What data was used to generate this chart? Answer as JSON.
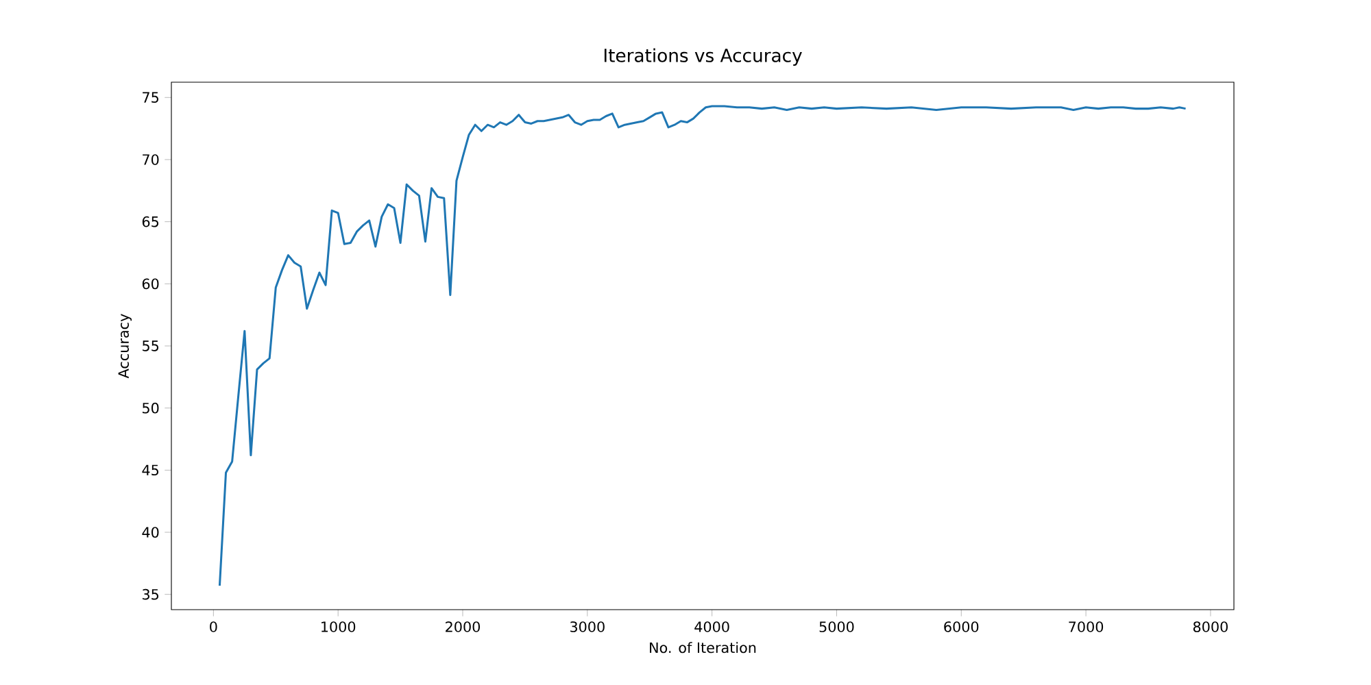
{
  "chart_data": {
    "type": "line",
    "title": "Iterations vs Accuracy",
    "xlabel": "No. of Iteration",
    "ylabel": "Accuracy",
    "x": [
      50,
      100,
      150,
      200,
      250,
      300,
      350,
      400,
      450,
      500,
      550,
      600,
      650,
      700,
      750,
      800,
      850,
      900,
      950,
      1000,
      1050,
      1100,
      1150,
      1200,
      1250,
      1300,
      1350,
      1400,
      1450,
      1500,
      1550,
      1600,
      1650,
      1700,
      1750,
      1800,
      1850,
      1900,
      1950,
      2000,
      2050,
      2100,
      2150,
      2200,
      2250,
      2300,
      2350,
      2400,
      2450,
      2500,
      2550,
      2600,
      2650,
      2700,
      2750,
      2800,
      2850,
      2900,
      2950,
      3000,
      3050,
      3100,
      3150,
      3200,
      3250,
      3300,
      3350,
      3400,
      3450,
      3500,
      3550,
      3600,
      3650,
      3700,
      3750,
      3800,
      3850,
      3900,
      3950,
      4000,
      4100,
      4200,
      4300,
      4400,
      4500,
      4600,
      4700,
      4800,
      4900,
      5000,
      5200,
      5400,
      5600,
      5800,
      6000,
      6200,
      6400,
      6600,
      6800,
      6900,
      7000,
      7100,
      7200,
      7300,
      7400,
      7500,
      7600,
      7700,
      7750,
      7800
    ],
    "series": [
      {
        "color": "#1f77b4",
        "values": [
          35.7,
          44.8,
          45.7,
          51.0,
          56.2,
          46.2,
          53.1,
          53.6,
          54.0,
          59.7,
          61.1,
          62.3,
          61.7,
          61.4,
          58.0,
          59.5,
          60.9,
          59.9,
          65.9,
          65.7,
          63.2,
          63.3,
          64.2,
          64.7,
          65.1,
          63.0,
          65.4,
          66.4,
          66.1,
          63.3,
          68.0,
          67.5,
          67.1,
          63.4,
          67.7,
          67.0,
          66.9,
          59.1,
          68.3,
          70.2,
          72.0,
          72.8,
          72.3,
          72.8,
          72.6,
          73.0,
          72.8,
          73.1,
          73.6,
          73.0,
          72.9,
          73.1,
          73.1,
          73.2,
          73.3,
          73.4,
          73.6,
          73.0,
          72.8,
          73.1,
          73.2,
          73.2,
          73.5,
          73.7,
          72.6,
          72.8,
          72.9,
          73.0,
          73.1,
          73.4,
          73.7,
          73.8,
          72.6,
          72.8,
          73.1,
          73.0,
          73.3,
          73.8,
          74.2,
          74.3,
          74.3,
          74.2,
          74.2,
          74.1,
          74.2,
          74.0,
          74.2,
          74.1,
          74.2,
          74.1,
          74.2,
          74.1,
          74.2,
          74.0,
          74.2,
          74.2,
          74.1,
          74.2,
          74.2,
          74.0,
          74.2,
          74.1,
          74.2,
          74.2,
          74.1,
          74.1,
          74.2,
          74.1,
          74.2,
          74.1
        ]
      }
    ],
    "xlim": [
      -337.5,
      8187.5
    ],
    "ylim": [
      33.77,
      76.23
    ],
    "xticks": [
      0,
      1000,
      2000,
      3000,
      4000,
      5000,
      6000,
      7000,
      8000
    ],
    "yticks": [
      35,
      40,
      45,
      50,
      55,
      60,
      65,
      70,
      75
    ],
    "grid": false,
    "line_style": "solid"
  }
}
